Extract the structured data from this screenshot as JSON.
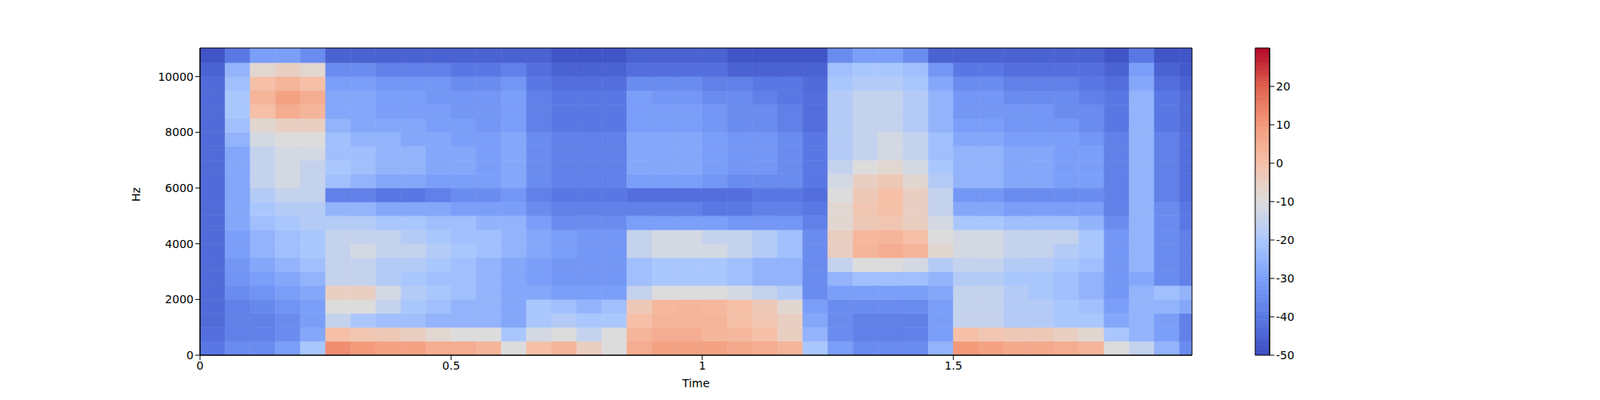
{
  "chart_data": {
    "type": "heatmap",
    "xlabel": "Time",
    "ylabel": "Hz",
    "xlim": [
      0,
      1.975
    ],
    "xticks": [
      0,
      0.5,
      1,
      1.5
    ],
    "ylim": [
      0,
      11025
    ],
    "yticks": [
      0,
      2000,
      4000,
      6000,
      8000,
      10000
    ],
    "x_edges": [
      0,
      0.05,
      0.1,
      0.15,
      0.2,
      0.25,
      0.3,
      0.35,
      0.4,
      0.45,
      0.5,
      0.55,
      0.6,
      0.65,
      0.7,
      0.75,
      0.8,
      0.85,
      0.9,
      0.95,
      1.0,
      1.05,
      1.1,
      1.15,
      1.2,
      1.25,
      1.3,
      1.35,
      1.4,
      1.45,
      1.5,
      1.55,
      1.6,
      1.65,
      1.7,
      1.75,
      1.8,
      1.85,
      1.9,
      1.95,
      1.975
    ],
    "y_edges": [
      0,
      500,
      1000,
      1500,
      2000,
      2500,
      3000,
      3500,
      4000,
      4500,
      5000,
      5500,
      6000,
      6500,
      7000,
      7500,
      8000,
      8500,
      9000,
      9500,
      10000,
      10500,
      11025
    ],
    "z": [
      [
        -40,
        -35,
        -35,
        -30,
        -20,
        12,
        10,
        8,
        8,
        5,
        5,
        3,
        -10,
        0,
        3,
        -5,
        -10,
        5,
        8,
        8,
        8,
        6,
        5,
        3,
        -20,
        -30,
        -35,
        -35,
        -35,
        -25,
        10,
        8,
        6,
        6,
        5,
        3,
        -10,
        -15,
        -25,
        -35
      ],
      [
        -42,
        -38,
        -38,
        -35,
        -28,
        0,
        -2,
        -3,
        -5,
        -8,
        -10,
        -10,
        -20,
        -12,
        -10,
        -15,
        -10,
        3,
        5,
        5,
        3,
        2,
        0,
        -5,
        -25,
        -35,
        -38,
        -38,
        -38,
        -30,
        0,
        -2,
        -3,
        -3,
        -5,
        -8,
        -20,
        -25,
        -30,
        -38
      ],
      [
        -43,
        -38,
        -38,
        -35,
        -30,
        -15,
        -20,
        -22,
        -22,
        -25,
        -25,
        -25,
        -28,
        -20,
        -18,
        -20,
        -20,
        0,
        3,
        3,
        3,
        0,
        -2,
        -5,
        -28,
        -35,
        -38,
        -38,
        -38,
        -30,
        -15,
        -15,
        -18,
        -18,
        -20,
        -20,
        -28,
        -25,
        -30,
        -38
      ],
      [
        -43,
        -38,
        -36,
        -33,
        -30,
        -10,
        -10,
        -15,
        -20,
        -22,
        -25,
        -25,
        -28,
        -20,
        -22,
        -25,
        -22,
        -3,
        2,
        3,
        2,
        0,
        -3,
        -8,
        -30,
        -35,
        -35,
        -35,
        -35,
        -30,
        -15,
        -15,
        -18,
        -18,
        -20,
        -22,
        -30,
        -25,
        -25,
        -28
      ],
      [
        -43,
        -35,
        -33,
        -30,
        -28,
        -5,
        -5,
        -12,
        -18,
        -20,
        -22,
        -25,
        -28,
        -28,
        -30,
        -30,
        -30,
        -15,
        -10,
        -10,
        -10,
        -12,
        -15,
        -18,
        -35,
        -30,
        -30,
        -30,
        -30,
        -28,
        -15,
        -15,
        -18,
        -20,
        -22,
        -25,
        -32,
        -25,
        -22,
        -25
      ],
      [
        -43,
        -33,
        -30,
        -28,
        -25,
        -15,
        -15,
        -18,
        -20,
        -22,
        -22,
        -25,
        -28,
        -30,
        -32,
        -32,
        -32,
        -22,
        -20,
        -20,
        -20,
        -22,
        -25,
        -25,
        -35,
        -25,
        -22,
        -22,
        -22,
        -25,
        -18,
        -18,
        -20,
        -20,
        -22,
        -25,
        -32,
        -28,
        -35,
        -38
      ],
      [
        -43,
        -32,
        -28,
        -25,
        -22,
        -15,
        -15,
        -18,
        -18,
        -20,
        -22,
        -25,
        -28,
        -30,
        -32,
        -32,
        -32,
        -22,
        -20,
        -20,
        -20,
        -22,
        -25,
        -25,
        -35,
        -15,
        -10,
        -10,
        -12,
        -18,
        -15,
        -15,
        -18,
        -18,
        -20,
        -22,
        -32,
        -25,
        -35,
        -38
      ],
      [
        -43,
        -30,
        -25,
        -22,
        -20,
        -15,
        -12,
        -15,
        -15,
        -18,
        -20,
        -22,
        -25,
        -28,
        -30,
        -32,
        -32,
        -15,
        -12,
        -12,
        -12,
        -15,
        -18,
        -22,
        -35,
        -5,
        3,
        5,
        3,
        -8,
        -12,
        -12,
        -15,
        -15,
        -18,
        -20,
        -32,
        -25,
        -35,
        -38
      ],
      [
        -43,
        -30,
        -25,
        -22,
        -20,
        -15,
        -15,
        -15,
        -18,
        -20,
        -22,
        -22,
        -25,
        -28,
        -30,
        -32,
        -32,
        -15,
        -12,
        -12,
        -15,
        -15,
        -18,
        -22,
        -35,
        -5,
        2,
        3,
        0,
        -10,
        -12,
        -12,
        -15,
        -15,
        -15,
        -20,
        -32,
        -25,
        -35,
        -38
      ],
      [
        -43,
        -28,
        -22,
        -20,
        -18,
        -18,
        -18,
        -20,
        -20,
        -22,
        -22,
        -25,
        -25,
        -30,
        -35,
        -35,
        -35,
        -30,
        -30,
        -30,
        -30,
        -32,
        -32,
        -32,
        -38,
        -8,
        -3,
        -2,
        -5,
        -12,
        -20,
        -20,
        -22,
        -22,
        -22,
        -25,
        -35,
        -25,
        -35,
        -40
      ],
      [
        -43,
        -28,
        -20,
        -18,
        -18,
        -25,
        -25,
        -28,
        -28,
        -28,
        -30,
        -30,
        -30,
        -35,
        -38,
        -38,
        -38,
        -38,
        -38,
        -38,
        -40,
        -40,
        -38,
        -38,
        -40,
        -8,
        -2,
        0,
        -5,
        -15,
        -28,
        -28,
        -30,
        -30,
        -30,
        -30,
        -38,
        -25,
        -35,
        -40
      ],
      [
        -43,
        -28,
        -18,
        -15,
        -15,
        -38,
        -38,
        -40,
        -40,
        -38,
        -35,
        -35,
        -32,
        -38,
        -40,
        -40,
        -40,
        -42,
        -42,
        -42,
        -42,
        -42,
        -40,
        -40,
        -42,
        -10,
        -3,
        0,
        -5,
        -15,
        -32,
        -32,
        -35,
        -35,
        -35,
        -35,
        -38,
        -25,
        -38,
        -42
      ],
      [
        -43,
        -28,
        -15,
        -12,
        -15,
        -22,
        -25,
        -28,
        -28,
        -30,
        -30,
        -30,
        -28,
        -35,
        -38,
        -38,
        -38,
        -30,
        -30,
        -30,
        -32,
        -35,
        -35,
        -35,
        -40,
        -12,
        -5,
        -3,
        -8,
        -18,
        -25,
        -25,
        -28,
        -28,
        -30,
        -30,
        -38,
        -25,
        -38,
        -42
      ],
      [
        -43,
        -28,
        -15,
        -12,
        -15,
        -20,
        -22,
        -25,
        -25,
        -28,
        -28,
        -30,
        -28,
        -35,
        -38,
        -38,
        -38,
        -28,
        -28,
        -28,
        -30,
        -32,
        -32,
        -35,
        -40,
        -15,
        -10,
        -8,
        -12,
        -20,
        -25,
        -25,
        -28,
        -28,
        -30,
        -30,
        -38,
        -25,
        -38,
        -42
      ],
      [
        -43,
        -28,
        -15,
        -12,
        -12,
        -22,
        -22,
        -25,
        -25,
        -28,
        -28,
        -30,
        -28,
        -35,
        -38,
        -38,
        -38,
        -28,
        -28,
        -28,
        -30,
        -32,
        -32,
        -35,
        -40,
        -18,
        -15,
        -12,
        -15,
        -22,
        -25,
        -25,
        -28,
        -28,
        -30,
        -30,
        -38,
        -25,
        -38,
        -42
      ],
      [
        -43,
        -25,
        -12,
        -10,
        -10,
        -22,
        -25,
        -25,
        -28,
        -28,
        -30,
        -30,
        -28,
        -35,
        -38,
        -38,
        -38,
        -28,
        -28,
        -28,
        -30,
        -32,
        -32,
        -35,
        -40,
        -18,
        -15,
        -12,
        -15,
        -22,
        -28,
        -28,
        -30,
        -30,
        -30,
        -32,
        -38,
        -25,
        -38,
        -42
      ],
      [
        -43,
        -22,
        -8,
        -5,
        -5,
        -25,
        -28,
        -28,
        -28,
        -30,
        -30,
        -32,
        -30,
        -38,
        -40,
        -40,
        -40,
        -30,
        -30,
        -30,
        -32,
        -35,
        -35,
        -38,
        -42,
        -18,
        -15,
        -15,
        -18,
        -25,
        -30,
        -30,
        -32,
        -32,
        -32,
        -35,
        -40,
        -25,
        -40,
        -43
      ],
      [
        -43,
        -20,
        0,
        5,
        3,
        -28,
        -28,
        -30,
        -30,
        -30,
        -32,
        -32,
        -30,
        -38,
        -40,
        -40,
        -40,
        -30,
        -30,
        -30,
        -32,
        -35,
        -35,
        -38,
        -42,
        -18,
        -15,
        -15,
        -18,
        -25,
        -32,
        -32,
        -32,
        -32,
        -35,
        -35,
        -40,
        -25,
        -40,
        -43
      ],
      [
        -43,
        -20,
        3,
        8,
        5,
        -28,
        -28,
        -30,
        -30,
        -32,
        -32,
        -32,
        -30,
        -38,
        -40,
        -40,
        -40,
        -30,
        -32,
        -32,
        -35,
        -35,
        -38,
        -40,
        -42,
        -18,
        -15,
        -15,
        -18,
        -25,
        -32,
        -32,
        -35,
        -35,
        -35,
        -38,
        -40,
        -25,
        -40,
        -43
      ],
      [
        -43,
        -22,
        0,
        3,
        0,
        -30,
        -30,
        -32,
        -32,
        -32,
        -35,
        -35,
        -32,
        -40,
        -42,
        -42,
        -42,
        -35,
        -35,
        -35,
        -38,
        -38,
        -40,
        -40,
        -43,
        -20,
        -18,
        -18,
        -20,
        -28,
        -35,
        -35,
        -38,
        -38,
        -38,
        -40,
        -42,
        -28,
        -42,
        -45
      ],
      [
        -45,
        -25,
        -8,
        -5,
        -8,
        -35,
        -35,
        -38,
        -38,
        -38,
        -40,
        -40,
        -38,
        -42,
        -45,
        -45,
        -45,
        -42,
        -42,
        -42,
        -42,
        -45,
        -45,
        -45,
        -45,
        -22,
        -20,
        -20,
        -22,
        -32,
        -40,
        -40,
        -42,
        -42,
        -42,
        -42,
        -45,
        -30,
        -45,
        -47
      ],
      [
        -48,
        -40,
        -30,
        -30,
        -35,
        -45,
        -45,
        -45,
        -45,
        -45,
        -45,
        -45,
        -45,
        -45,
        -48,
        -48,
        -48,
        -45,
        -45,
        -45,
        -45,
        -48,
        -48,
        -48,
        -48,
        -35,
        -30,
        -30,
        -35,
        -45,
        -45,
        -45,
        -45,
        -45,
        -45,
        -45,
        -48,
        -40,
        -48,
        -48
      ]
    ],
    "colorbar": {
      "range": [
        -50,
        30
      ],
      "ticks": [
        -50,
        -40,
        -30,
        -20,
        -10,
        0,
        10,
        20
      ]
    }
  }
}
